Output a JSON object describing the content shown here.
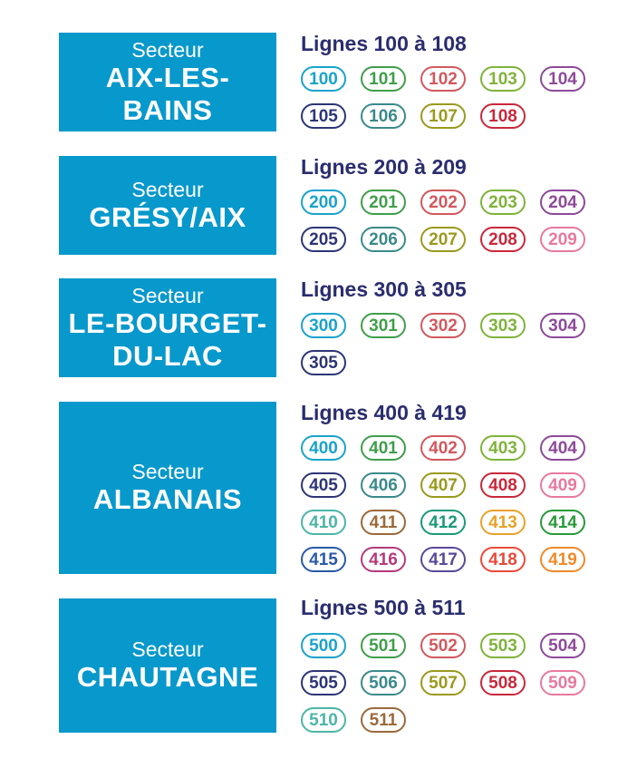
{
  "sectors": [
    {
      "kicker": "Secteur",
      "name": "AIX-LES-\nBAINS",
      "lines_title": "Lignes 100 à 108",
      "lines": [
        {
          "n": "100",
          "color": "#1aa3cc"
        },
        {
          "n": "101",
          "color": "#3f9e4a"
        },
        {
          "n": "102",
          "color": "#d2585e"
        },
        {
          "n": "103",
          "color": "#7fb33a"
        },
        {
          "n": "104",
          "color": "#8e4a9a"
        },
        {
          "n": "105",
          "color": "#2d3576"
        },
        {
          "n": "106",
          "color": "#3a8a8a"
        },
        {
          "n": "107",
          "color": "#9a9a1e"
        },
        {
          "n": "108",
          "color": "#c9283b"
        }
      ]
    },
    {
      "kicker": "Secteur",
      "name": "GRÉSY/AIX",
      "lines_title": "Lignes 200 à 209",
      "lines": [
        {
          "n": "200",
          "color": "#1aa3cc"
        },
        {
          "n": "201",
          "color": "#3f9e4a"
        },
        {
          "n": "202",
          "color": "#d2585e"
        },
        {
          "n": "203",
          "color": "#7fb33a"
        },
        {
          "n": "204",
          "color": "#8e4a9a"
        },
        {
          "n": "205",
          "color": "#2d3576"
        },
        {
          "n": "206",
          "color": "#3a8a8a"
        },
        {
          "n": "207",
          "color": "#9a9a1e"
        },
        {
          "n": "208",
          "color": "#c9283b"
        },
        {
          "n": "209",
          "color": "#e8799e"
        }
      ]
    },
    {
      "kicker": "Secteur",
      "name": "LE-BOURGET-\nDU-LAC",
      "lines_title": "Lignes 300 à 305",
      "lines": [
        {
          "n": "300",
          "color": "#1aa3cc"
        },
        {
          "n": "301",
          "color": "#3f9e4a"
        },
        {
          "n": "302",
          "color": "#d2585e"
        },
        {
          "n": "303",
          "color": "#7fb33a"
        },
        {
          "n": "304",
          "color": "#8e4a9a"
        },
        {
          "n": "305",
          "color": "#2d3576"
        }
      ]
    },
    {
      "kicker": "Secteur",
      "name": "ALBANAIS",
      "lines_title": "Lignes 400 à 419",
      "lines": [
        {
          "n": "400",
          "color": "#1aa3cc"
        },
        {
          "n": "401",
          "color": "#3f9e4a"
        },
        {
          "n": "402",
          "color": "#d2585e"
        },
        {
          "n": "403",
          "color": "#7fb33a"
        },
        {
          "n": "404",
          "color": "#8e4a9a"
        },
        {
          "n": "405",
          "color": "#2d3576"
        },
        {
          "n": "406",
          "color": "#3a8a8a"
        },
        {
          "n": "407",
          "color": "#9a9a1e"
        },
        {
          "n": "408",
          "color": "#c9283b"
        },
        {
          "n": "409",
          "color": "#e8799e"
        },
        {
          "n": "410",
          "color": "#4cb5a8"
        },
        {
          "n": "411",
          "color": "#9a6a3a"
        },
        {
          "n": "412",
          "color": "#1b9a7a"
        },
        {
          "n": "413",
          "color": "#e8a22a"
        },
        {
          "n": "414",
          "color": "#2a9a3a"
        },
        {
          "n": "415",
          "color": "#2a5aa8"
        },
        {
          "n": "416",
          "color": "#b43a7a"
        },
        {
          "n": "417",
          "color": "#5a4a9a"
        },
        {
          "n": "418",
          "color": "#e84a3a"
        },
        {
          "n": "419",
          "color": "#f08a2a"
        }
      ]
    },
    {
      "kicker": "Secteur",
      "name": "CHAUTAGNE",
      "lines_title": "Lignes 500 à 511",
      "lines": [
        {
          "n": "500",
          "color": "#1aa3cc"
        },
        {
          "n": "501",
          "color": "#3f9e4a"
        },
        {
          "n": "502",
          "color": "#d2585e"
        },
        {
          "n": "503",
          "color": "#7fb33a"
        },
        {
          "n": "504",
          "color": "#8e4a9a"
        },
        {
          "n": "505",
          "color": "#2d3576"
        },
        {
          "n": "506",
          "color": "#3a8a8a"
        },
        {
          "n": "507",
          "color": "#9a9a1e"
        },
        {
          "n": "508",
          "color": "#c9283b"
        },
        {
          "n": "509",
          "color": "#e8799e"
        },
        {
          "n": "510",
          "color": "#4cb5a8"
        },
        {
          "n": "511",
          "color": "#9a6a3a"
        }
      ]
    }
  ]
}
